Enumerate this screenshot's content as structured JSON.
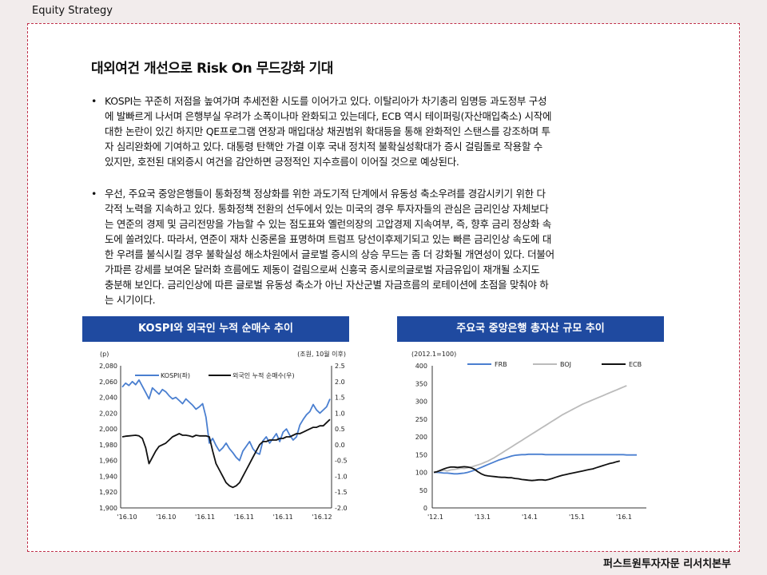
{
  "header": {
    "section": "Equity Strategy"
  },
  "title": "대외여건 개선으로 Risk On 무드강화 기대",
  "paragraphs": [
    {
      "bullet": "•",
      "lines": [
        "KOSPI는 꾸준히 저점을 높여가며 추세전환 시도를 이어가고 있다. 이탈리아가 차기총리 임명등 과도정부 구성",
        "에 발빠르게 나서며 은행부실 우려가 소폭이나마 완화되고 있는데다, ECB 역시 테이퍼링(자산매입축소) 시작에",
        "대한 논란이 있긴 하지만 QE프로그램 연장과 매입대상 채권범위 확대등을 통해 완화적인 스탠스를 강조하며 투",
        "자 심리완화에 기여하고 있다. 대통령 탄핵안 가결 이후 국내 정치적 불확실성확대가 증시 걸림돌로 작용할 수",
        "있지만, 호전된 대외증시 여건을 감안하면 긍정적인 지수흐름이 이어질 것으로 예상된다."
      ]
    },
    {
      "bullet": "•",
      "lines": [
        "우선, 주요국 중앙은행들이 통화정책 정상화를 위한 과도기적 단계에서 유동성 축소우려를 경감시키기 위한 다",
        "각적 노력을 지속하고 있다. 통화정책 전환의 선두에서 있는 미국의 경우 투자자들의 관심은 금리인상 자체보다",
        "는 연준의 경제 및 금리전망을 가늠할 수 있는 점도표와 옐런의장의 고압경제 지속여부, 즉, 향후 금리 정상화 속",
        "도에 쏠려있다. 따라서, 연준이 재차 신중론을 표명하며 트럼프 당선이후제기되고 있는 빠른 금리인상 속도에 대",
        "한 우려를 불식시킬 경우 불확실성 해소차원에서 글로벌 증시의 상승 무드는 좀 더 강화될 개연성이 있다. 더불어",
        "가파른 강세를 보여온 달러화 흐름에도 제동이 걸림으로써 신흥국 증시로의글로벌 자금유입이 재개될 소지도",
        "충분해 보인다. 금리인상에 따른 글로벌 유동성 축소가 아닌 자산군별 자금흐름의 로테이션에 초점을 맞춰야 하",
        "는 시기이다."
      ]
    }
  ],
  "footer": "퍼스트원투자자문 리서치본부",
  "chart_data": [
    {
      "type": "line",
      "title": "KOSPI와 외국인 누적 순매수 추이",
      "left_unit": "(p)",
      "right_unit": "(조원, 10월 이후)",
      "xtick_labels": [
        "'16.10",
        "'16.10",
        "'16.11",
        "'16.11",
        "'16.11",
        "'16.12"
      ],
      "ylim_left": [
        1900,
        2080
      ],
      "yticks_left": [
        "2,080",
        "2,060",
        "2,040",
        "2,020",
        "2,000",
        "1,980",
        "1,960",
        "1,940",
        "1,920",
        "1,900"
      ],
      "ylim_right": [
        -2.0,
        2.5
      ],
      "yticks_right": [
        "2.5",
        "2.0",
        "1.5",
        "1.0",
        "0.5",
        "0.0",
        "-0.5",
        "-1.0",
        "-1.5",
        "-2.0"
      ],
      "legend_position": "top",
      "series": [
        {
          "name": "KOSPI(좌)",
          "color": "#4a7fd0",
          "axis": "left",
          "values": [
            2053,
            2058,
            2055,
            2060,
            2056,
            2062,
            2054,
            2046,
            2038,
            2052,
            2048,
            2044,
            2050,
            2047,
            2042,
            2038,
            2040,
            2036,
            2032,
            2038,
            2034,
            2030,
            2025,
            2028,
            2032,
            2015,
            1982,
            1988,
            1979,
            1972,
            1976,
            1982,
            1975,
            1970,
            1964,
            1960,
            1972,
            1978,
            1984,
            1975,
            1970,
            1968,
            1985,
            1990,
            1982,
            1988,
            1994,
            1984,
            1996,
            2000,
            1992,
            1986,
            1990,
            2005,
            2012,
            2018,
            2022,
            2031,
            2024,
            2020,
            2024,
            2028,
            2038
          ]
        },
        {
          "name": "외국인 누적 순매수(우)",
          "color": "#111111",
          "axis": "right",
          "values": [
            0.25,
            0.27,
            0.28,
            0.29,
            0.3,
            0.28,
            0.2,
            -0.1,
            -0.6,
            -0.4,
            -0.2,
            -0.05,
            0.0,
            0.05,
            0.15,
            0.25,
            0.3,
            0.35,
            0.3,
            0.3,
            0.28,
            0.25,
            0.3,
            0.28,
            0.28,
            0.28,
            0.25,
            -0.2,
            -0.6,
            -0.8,
            -1.0,
            -1.2,
            -1.3,
            -1.35,
            -1.3,
            -1.2,
            -1.0,
            -0.8,
            -0.6,
            -0.4,
            -0.2,
            0.0,
            0.1,
            0.1,
            0.15,
            0.15,
            0.15,
            0.2,
            0.2,
            0.25,
            0.25,
            0.3,
            0.35,
            0.35,
            0.4,
            0.45,
            0.5,
            0.55,
            0.55,
            0.6,
            0.6,
            0.7,
            0.8
          ]
        }
      ]
    },
    {
      "type": "line",
      "title": "주요국 중앙은행 총자산 규모 추이",
      "subtitle": "(2012.1=100)",
      "xtick_labels": [
        "'12.1",
        "'13.1",
        "'14.1",
        "'15.1",
        "'16.1"
      ],
      "ylim": [
        0,
        400
      ],
      "yticks": [
        "400",
        "350",
        "300",
        "250",
        "200",
        "150",
        "100",
        "50",
        "0"
      ],
      "legend_position": "top",
      "series": [
        {
          "name": "FRB",
          "color": "#4a7fd0",
          "values": [
            100,
            100,
            99,
            98,
            98,
            97,
            96,
            96,
            97,
            98,
            100,
            103,
            106,
            110,
            114,
            118,
            122,
            126,
            130,
            134,
            137,
            140,
            143,
            146,
            148,
            149,
            150,
            150,
            151,
            151,
            151,
            151,
            151,
            150,
            150,
            150,
            150,
            150,
            150,
            150,
            150,
            150,
            150,
            150,
            150,
            150,
            150,
            150,
            150,
            150,
            150,
            150,
            150,
            150,
            150,
            150,
            150,
            149,
            149,
            149,
            149
          ]
        },
        {
          "name": "BOJ",
          "color": "#bbbbbb",
          "values": [
            100,
            102,
            104,
            106,
            104,
            107,
            108,
            110,
            112,
            111,
            113,
            115,
            118,
            121,
            124,
            128,
            132,
            137,
            142,
            148,
            154,
            160,
            166,
            172,
            178,
            184,
            190,
            196,
            202,
            208,
            214,
            220,
            226,
            232,
            238,
            244,
            250,
            256,
            262,
            267,
            272,
            277,
            282,
            287,
            292,
            296,
            300,
            304,
            308,
            312,
            316,
            320,
            324,
            328,
            332,
            336,
            340,
            344
          ]
        },
        {
          "name": "ECB",
          "color": "#111111",
          "values": [
            100,
            102,
            106,
            110,
            113,
            115,
            115,
            114,
            115,
            116,
            115,
            113,
            109,
            102,
            96,
            92,
            90,
            89,
            88,
            87,
            86,
            86,
            85,
            85,
            83,
            82,
            80,
            79,
            78,
            77,
            78,
            79,
            79,
            78,
            80,
            83,
            86,
            89,
            92,
            94,
            96,
            98,
            100,
            102,
            104,
            106,
            108,
            110,
            113,
            116,
            119,
            122,
            125,
            127,
            130,
            132
          ]
        }
      ]
    }
  ]
}
